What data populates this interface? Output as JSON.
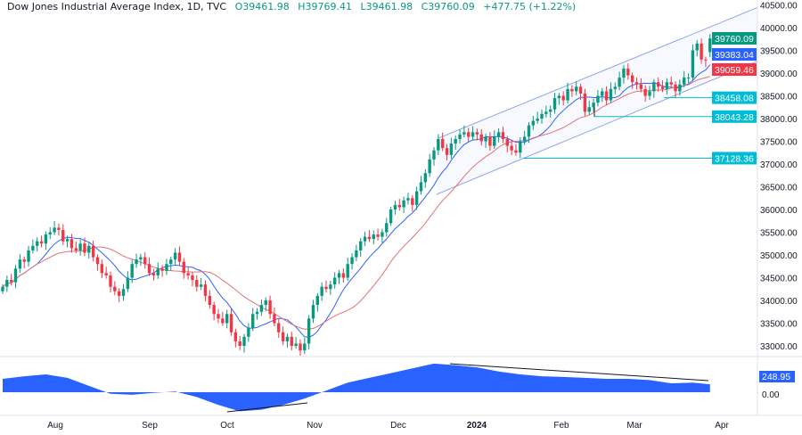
{
  "header": {
    "title": "Dow Jones Industrial Average Index, 1D, TVC",
    "open": "O39461.98",
    "high": "H39769.41",
    "low": "L39461.98",
    "close": "C39760.09",
    "change": "+477.75 (+1.22%)"
  },
  "colors": {
    "up": "#089981",
    "down": "#f23645",
    "ma_fast": "#2962ff",
    "ma_slow": "#e57373",
    "oscillator": "#2962ff",
    "level": "#00bcd4"
  },
  "chart_data": {
    "type": "candlestick",
    "price_axis": {
      "ticks": [
        33000,
        33500,
        34000,
        34500,
        35000,
        35500,
        36000,
        36500,
        37000,
        37500,
        38000,
        38500,
        39000,
        39500,
        40000,
        40500
      ],
      "tick_labels": [
        "33000.00",
        "33500.00",
        "34000.00",
        "34500.00",
        "35000.00",
        "35500.00",
        "36000.00",
        "36500.00",
        "37000.00",
        "37500.00",
        "38000.00",
        "38500.00",
        "39000.00",
        "39500.00",
        "40000.00",
        "40500.00"
      ]
    },
    "time_axis": {
      "labels": [
        "Aug",
        "Sep",
        "Oct",
        "Nov",
        "Dec",
        "2024",
        "Feb",
        "Mar",
        "Apr"
      ]
    },
    "closes": [
      34300,
      34450,
      34400,
      34700,
      34900,
      34850,
      35100,
      35200,
      35300,
      35250,
      35450,
      35500,
      35600,
      35550,
      35300,
      35350,
      35150,
      35100,
      35250,
      35050,
      35200,
      34950,
      34800,
      34600,
      34550,
      34300,
      34200,
      34100,
      34250,
      34500,
      34800,
      34900,
      34950,
      34800,
      34600,
      34550,
      34700,
      34650,
      34800,
      34900,
      35050,
      34850,
      34600,
      34550,
      34450,
      34300,
      34350,
      34100,
      33900,
      33700,
      33600,
      33500,
      33700,
      33300,
      33100,
      33000,
      33200,
      33400,
      33700,
      33750,
      33900,
      34000,
      33700,
      33500,
      33300,
      33100,
      33200,
      33000,
      33050,
      32900,
      33050,
      33600,
      33900,
      34100,
      34300,
      34250,
      34350,
      34500,
      34600,
      34500,
      34800,
      34950,
      35100,
      35300,
      35400,
      35350,
      35450,
      35400,
      35500,
      35700,
      36000,
      36100,
      36050,
      36200,
      36250,
      36100,
      36400,
      36600,
      36800,
      37100,
      37300,
      37550,
      37350,
      37200,
      37450,
      37550,
      37650,
      37700,
      37600,
      37700,
      37650,
      37500,
      37600,
      37400,
      37600,
      37700,
      37550,
      37400,
      37300,
      37250,
      37500,
      37600,
      37850,
      37950,
      38000,
      38100,
      38150,
      38200,
      38450,
      38500,
      38400,
      38650,
      38600,
      38700,
      38550,
      38150,
      38250,
      38350,
      38500,
      38600,
      38400,
      38650,
      38700,
      38900,
      39100,
      38950,
      38800,
      38750,
      38650,
      38500,
      38600,
      38800,
      38700,
      38650,
      38800,
      38750,
      38600,
      38750,
      38900,
      38900,
      39500,
      39650,
      39300,
      39280,
      39760.09
    ],
    "last_open": 39461.98,
    "ma_fast_last": "39383.04",
    "ma_slow_last": "39059.46",
    "price_labels": {
      "last": "39760.09",
      "ma_fast": "39383.04",
      "ma_slow": "39059.46"
    },
    "levels": [
      {
        "value": 38458.08,
        "label": "38458.08"
      },
      {
        "value": 38043.28,
        "label": "38043.28"
      },
      {
        "value": 37128.36,
        "label": "37128.36"
      }
    ],
    "oscillator": {
      "values": [
        420,
        500,
        560,
        450,
        200,
        -50,
        -80,
        -20,
        20,
        -150,
        -400,
        -600,
        -550,
        -400,
        -200,
        50,
        300,
        450,
        600,
        750,
        900,
        850,
        780,
        650,
        560,
        500,
        480,
        450,
        420,
        420,
        380,
        280,
        300,
        248.95
      ],
      "last_label": "248.95",
      "zero_label": "0.00"
    }
  }
}
